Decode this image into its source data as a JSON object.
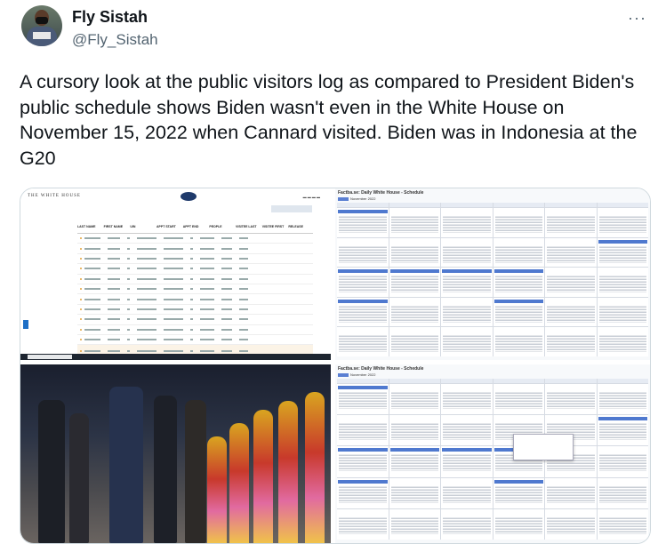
{
  "tweet": {
    "author_name": "Fly Sistah",
    "handle": "@Fly_Sistah",
    "more_icon": "more-horizontal-icon",
    "more_label": "···",
    "text": "A cursory look at the public visitors log as compared to President Biden's public schedule shows Biden wasn't even in the White House on November 15, 2022 when Cannard visited. Biden was in Indonesia at the G20"
  },
  "media": {
    "visitor_log": {
      "site_title": "THE WHITE HOUSE",
      "columns": [
        "LAST NAME",
        "FIRST NAME",
        "UIN",
        "APPT START",
        "APPT END",
        "PEOPLE",
        "VISITEE LAST",
        "VISITEE FIRST",
        "RELEASE"
      ],
      "row_count": 12
    },
    "schedule_top": {
      "title": "Factba.se: Daily White House - Schedule",
      "month": "November 2022"
    },
    "schedule_bottom": {
      "title": "Factba.se: Daily White House - Schedule",
      "month": "November 2022"
    }
  }
}
